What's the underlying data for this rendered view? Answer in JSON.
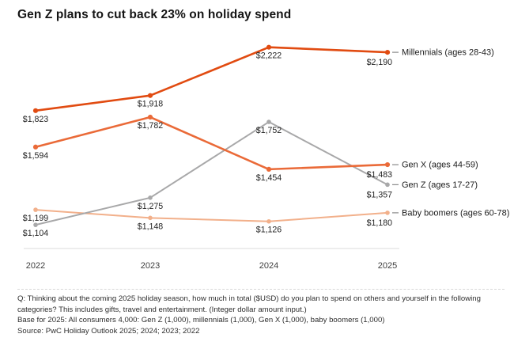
{
  "title": "Gen Z plans to cut back 23% on holiday spend",
  "chart_data": {
    "type": "line",
    "title": "Gen Z plans to cut back 23% on holiday spend",
    "x": [
      "2022",
      "2023",
      "2024",
      "2025"
    ],
    "series": [
      {
        "key": "millennials",
        "name": "Millennials (ages 28-43)",
        "values": [
          1823,
          1918,
          2222,
          2190
        ],
        "color": "#e14b11"
      },
      {
        "key": "genx",
        "name": "Gen X (ages 44-59)",
        "values": [
          1594,
          1782,
          1454,
          1483
        ],
        "color": "#ea6a38"
      },
      {
        "key": "genz",
        "name": "Gen Z (ages 17-27)",
        "values": [
          1104,
          1275,
          1752,
          1357
        ],
        "color": "#a8a8a9"
      },
      {
        "key": "boomers",
        "name": "Baby boomers (ages 60-78)",
        "values": [
          1199,
          1148,
          1126,
          1180
        ],
        "color": "#f2b08b"
      }
    ],
    "value_prefix": "$",
    "xlabel": "",
    "ylabel": "",
    "ylim": [
      1050,
      2330
    ],
    "grid": false,
    "legend_position": "right",
    "axis_line_color": "#e7e7e7",
    "label_color": "#232323"
  },
  "footer": {
    "question": "Q: Thinking about the coming 2025 holiday season, how much in total ($USD) do you plan to spend on others and yourself in the following categories? This includes gifts, travel and entertainment. (Integer dollar amount input.)",
    "base": "Base for 2025: All consumers 4,000: Gen Z (1,000), millennials (1,000), Gen X (1,000), baby boomers (1,000)",
    "source": "Source: PwC Holiday Outlook 2025; 2024; 2023; 2022"
  }
}
